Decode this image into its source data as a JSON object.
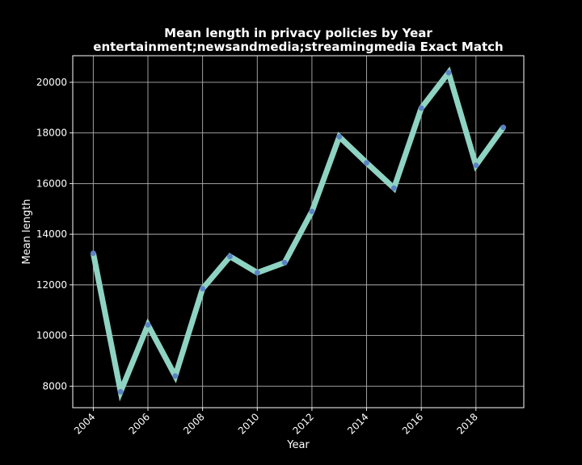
{
  "chart_data": {
    "type": "line",
    "title_line1": "Mean length in privacy policies by Year",
    "title_line2": "entertainment;newsandmedia;streamingmedia Exact Match",
    "xlabel": "Year",
    "ylabel": "Mean length",
    "x": [
      2004,
      2005,
      2006,
      2007,
      2008,
      2009,
      2010,
      2011,
      2012,
      2013,
      2014,
      2015,
      2016,
      2017,
      2018,
      2019
    ],
    "values": [
      13250,
      7780,
      10420,
      8400,
      11850,
      13120,
      12480,
      12880,
      14900,
      17850,
      16820,
      15820,
      18980,
      20380,
      16720,
      18220
    ],
    "xticks": [
      2004,
      2006,
      2008,
      2010,
      2012,
      2014,
      2016,
      2018
    ],
    "yticks": [
      8000,
      10000,
      12000,
      14000,
      16000,
      18000,
      20000
    ],
    "xlim": [
      2003.25,
      2019.75
    ],
    "ylim": [
      7150,
      21050
    ],
    "grid": true,
    "line_color": "#8fd3c3",
    "marker_color": "#5b82c4",
    "background": "#000000"
  }
}
